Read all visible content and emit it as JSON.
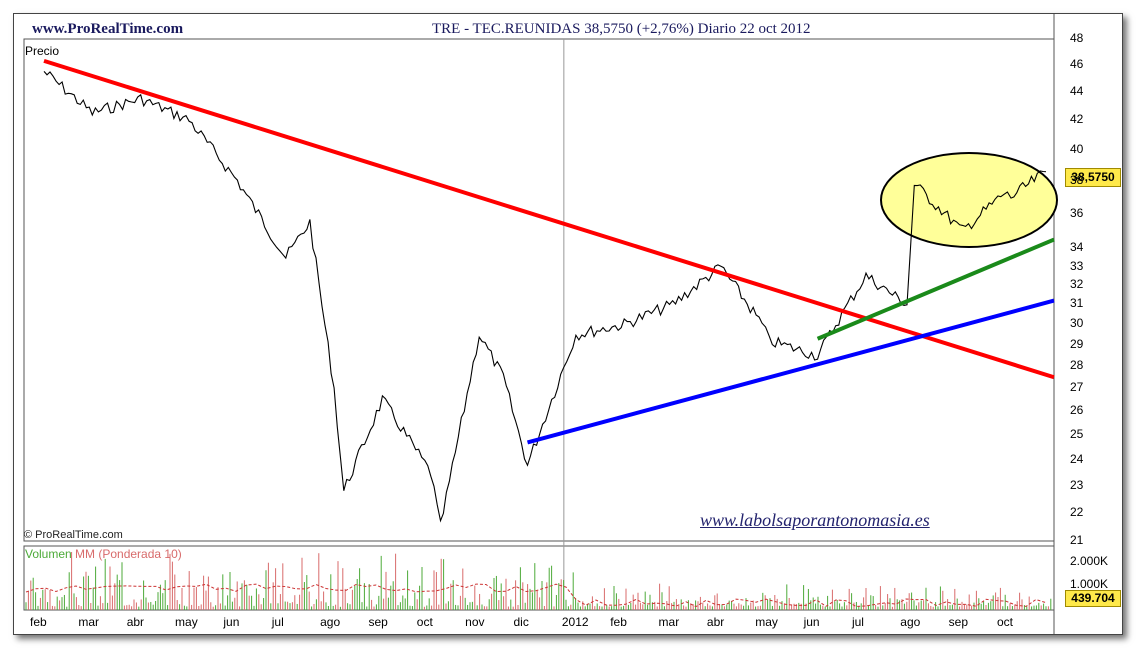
{
  "header": {
    "site": "www.ProRealTime.com",
    "title": "TRE - TEC.REUNIDAS    38,5750 (+2,76%)    Diario  22 oct 2012"
  },
  "labels": {
    "price_panel": "Precio",
    "copyright": "© ProRealTime.com",
    "website": "www.labolsaporantonomasia.es",
    "volume_a": "Volumen",
    "volume_b": " MM (Ponderada 10)"
  },
  "badges": {
    "last_price": "38,5750",
    "last_volume": "439.704"
  },
  "chart_data": {
    "type": "line",
    "title": "TRE - TEC.REUNIDAS",
    "ylabel": "Precio",
    "y_scale": "log",
    "ylim": [
      21,
      48
    ],
    "y_ticks": [
      "48",
      "46",
      "44",
      "42",
      "40",
      "38",
      "36",
      "34",
      "33",
      "32",
      "31",
      "30",
      "29",
      "28",
      "27",
      "26",
      "25",
      "24",
      "23",
      "22",
      "21"
    ],
    "x_ticks": [
      "feb",
      "mar",
      "abr",
      "may",
      "jun",
      "jul",
      "ago",
      "sep",
      "oct",
      "nov",
      "dic",
      "2012",
      "feb",
      "mar",
      "abr",
      "may",
      "jun",
      "jul",
      "ago",
      "sep",
      "oct"
    ],
    "series": [
      {
        "name": "Precio",
        "color": "#000000",
        "points": [
          [
            "feb-2011",
            45.5
          ],
          [
            "mar-2011",
            42.5
          ],
          [
            "abr-2011",
            43.5
          ],
          [
            "may-2011",
            42.0
          ],
          [
            "jun-2011",
            38.0
          ],
          [
            "jul-2011",
            33.5
          ],
          [
            "jul-2011 mid",
            35.5
          ],
          [
            "ago-2011",
            27.0
          ],
          [
            "ago-2011 low",
            22.8
          ],
          [
            "sep-2011",
            26.5
          ],
          [
            "oct-2011",
            23.5
          ],
          [
            "oct-2011 low",
            21.5
          ],
          [
            "nov-2011",
            29.5
          ],
          [
            "nov-2011 mid",
            27.5
          ],
          [
            "dic-2011",
            23.8
          ],
          [
            "2012",
            29.5
          ],
          [
            "feb-2012",
            30.0
          ],
          [
            "mar-2012",
            31.0
          ],
          [
            "abr-2012",
            33.0
          ],
          [
            "abr-2012 end",
            30.0
          ],
          [
            "may-2012",
            29.2
          ],
          [
            "jun-2012",
            28.5
          ],
          [
            "jun-2012 mid",
            30.5
          ],
          [
            "jul-2012",
            32.5
          ],
          [
            "jul-2012 end",
            31.0
          ],
          [
            "ago-2012",
            37.8
          ],
          [
            "sep-2012",
            35.0
          ],
          [
            "sep-2012 end",
            37.2
          ],
          [
            "oct-2012",
            37.0
          ],
          [
            "22 oct 2012",
            38.575
          ]
        ]
      }
    ],
    "trendlines": [
      {
        "name": "bajista",
        "color": "#ff0000",
        "from": [
          "feb-2011",
          46.3
        ],
        "to": [
          "oct-2012 end",
          27.5
        ]
      },
      {
        "name": "alcista largo",
        "color": "#0000ff",
        "from": [
          "dic-2011",
          24.7
        ],
        "to": [
          "oct-2012 end",
          31.2
        ]
      },
      {
        "name": "alcista corto",
        "color": "#1a8a1a",
        "from": [
          "jun-2012",
          29.3
        ],
        "to": [
          "oct-2012 end",
          34.5
        ]
      }
    ],
    "highlight": {
      "shape": "ellipse",
      "color": "#ffff99",
      "around": "ago-2012 to oct-2012 range 35-38"
    },
    "volume": {
      "label": "Volumen MM (Ponderada 10)",
      "y_ticks": [
        "2.000K",
        "1.000K"
      ],
      "last": "439.704"
    }
  }
}
